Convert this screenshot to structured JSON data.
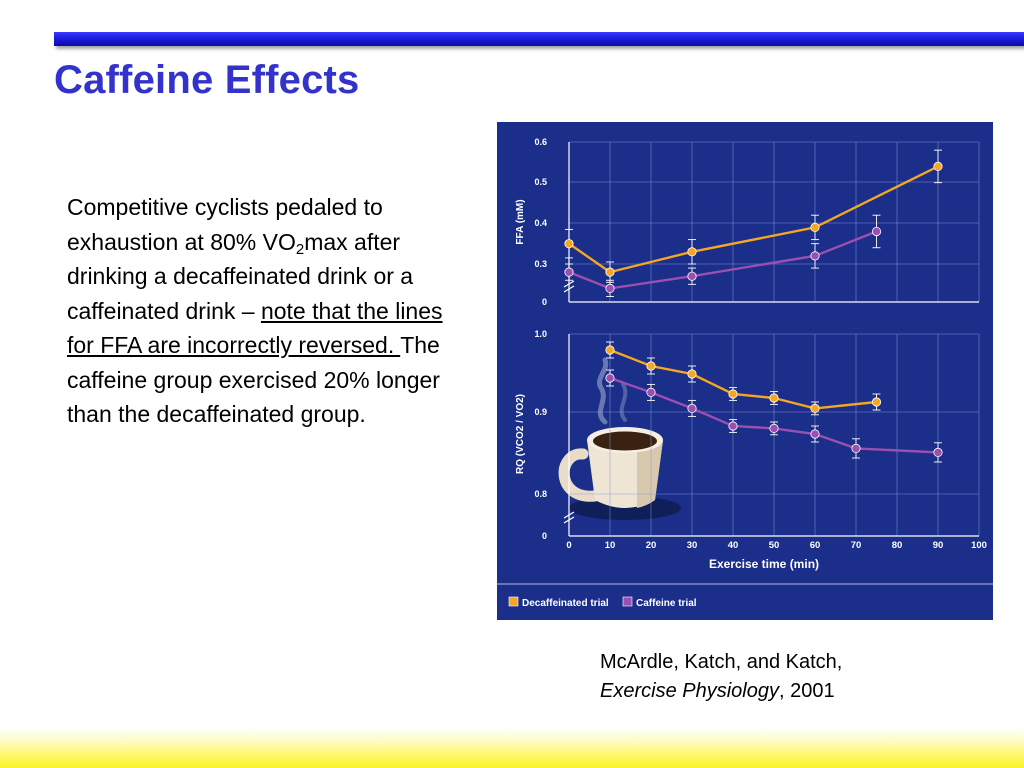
{
  "slide": {
    "title": "Caffeine Effects",
    "body": {
      "p1": "Competitive cyclists pedaled to exhaustion at 80% VO",
      "sub": "2",
      "p2": "max after drinking a decaffeinated drink or a caffeinated drink – ",
      "underlined": "note that the lines for FFA are incorrectly reversed.  ",
      "p3": "The caffeine group exercised 20% longer than the decaffeinated group."
    },
    "citation": {
      "authors": "McArdle, Katch, and Katch,",
      "book": "Exercise Physiology",
      "year": ", 2001"
    }
  },
  "colors": {
    "title": "#3333cc",
    "figure_bg": "#1a2e8a",
    "decaf": "#f5a623",
    "caffeine": "#9b4fb0",
    "grid": "#8a9ad8",
    "axis_text": "#ffffff"
  },
  "chart_data": [
    {
      "type": "line",
      "panel": "top",
      "xlabel": "",
      "ylabel": "FFA (mM)",
      "xlim": [
        0,
        100
      ],
      "ylim": [
        0.2,
        0.6
      ],
      "y_ticks": [
        "0.6",
        "0.5",
        "0.4",
        "0.3",
        "0"
      ],
      "axis_break": true,
      "grid": true,
      "series": [
        {
          "name": "Decaffeinated trial",
          "x": [
            0,
            10,
            30,
            60,
            90
          ],
          "y": [
            0.35,
            0.28,
            0.33,
            0.39,
            0.54
          ],
          "err": [
            0.035,
            0.025,
            0.03,
            0.03,
            0.04
          ]
        },
        {
          "name": "Caffeine trial",
          "x": [
            0,
            10,
            30,
            60,
            75
          ],
          "y": [
            0.28,
            0.24,
            0.27,
            0.32,
            0.38
          ],
          "err": [
            0.02,
            0.02,
            0.02,
            0.03,
            0.04
          ]
        }
      ]
    },
    {
      "type": "line",
      "panel": "bottom",
      "xlabel": "Exercise time (min)",
      "ylabel": "RQ (VCO2 / VO2)",
      "xlim": [
        0,
        100
      ],
      "ylim": [
        0.8,
        1.0
      ],
      "x_ticks": [
        "0",
        "10",
        "20",
        "30",
        "40",
        "50",
        "60",
        "70",
        "80",
        "90",
        "100"
      ],
      "y_ticks": [
        "1.0",
        "0.9",
        "0.8",
        "0"
      ],
      "axis_break": true,
      "grid": true,
      "series": [
        {
          "name": "Decaffeinated trial",
          "x": [
            10,
            20,
            30,
            40,
            50,
            60,
            75
          ],
          "y": [
            0.98,
            0.96,
            0.95,
            0.925,
            0.92,
            0.907,
            0.915
          ],
          "err": [
            0.01,
            0.01,
            0.01,
            0.008,
            0.008,
            0.008,
            0.01
          ]
        },
        {
          "name": "Caffeine trial",
          "x": [
            10,
            20,
            30,
            40,
            50,
            60,
            70,
            90
          ],
          "y": [
            0.945,
            0.927,
            0.907,
            0.885,
            0.882,
            0.875,
            0.857,
            0.852
          ],
          "err": [
            0.01,
            0.01,
            0.01,
            0.008,
            0.008,
            0.01,
            0.012,
            0.012
          ]
        }
      ],
      "legend": "bottom-left"
    }
  ]
}
